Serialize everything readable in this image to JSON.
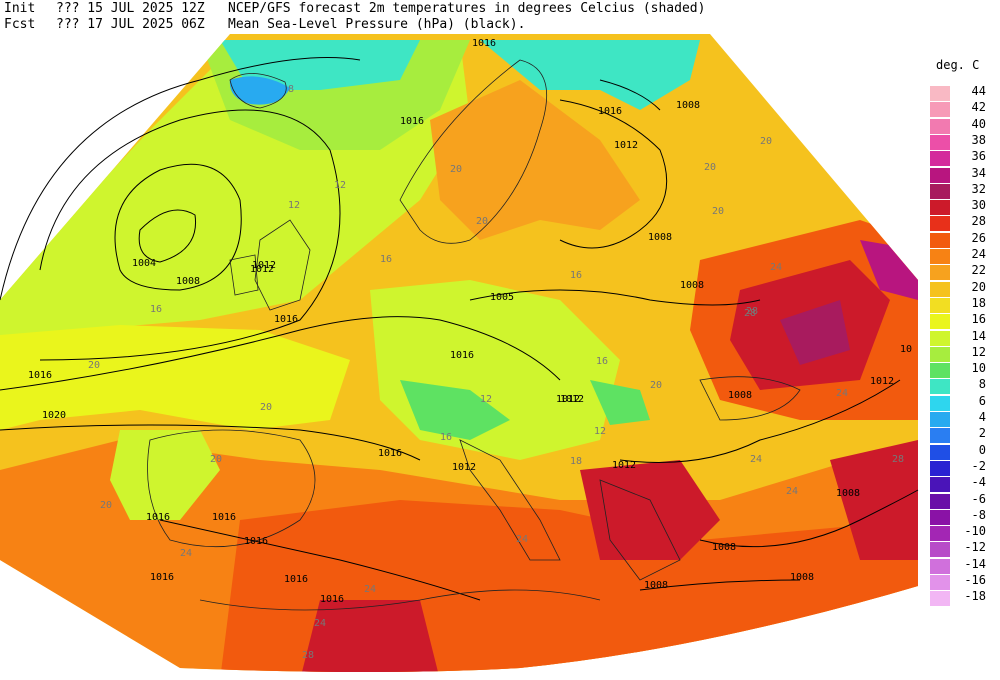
{
  "header": {
    "line1": {
      "label": "Init",
      "time": "??? 15 JUL 2025 12Z",
      "title": "NCEP/GFS forecast 2m temperatures in degrees Celcius (shaded)"
    },
    "line2": {
      "label": "Fcst",
      "time": "??? 17 JUL 2025 06Z",
      "title": "Mean Sea-Level Pressure (hPa) (black)."
    }
  },
  "legend": {
    "title": "deg. C",
    "items": [
      {
        "label": "44",
        "color": "#f9b9c4"
      },
      {
        "label": "42",
        "color": "#f79ab7"
      },
      {
        "label": "40",
        "color": "#f27ab0"
      },
      {
        "label": "38",
        "color": "#ec4fa8"
      },
      {
        "label": "36",
        "color": "#d42b9c"
      },
      {
        "label": "34",
        "color": "#b8157f"
      },
      {
        "label": "32",
        "color": "#a81b5e"
      },
      {
        "label": "30",
        "color": "#cc1a2a"
      },
      {
        "label": "28",
        "color": "#e8301a"
      },
      {
        "label": "26",
        "color": "#f25a0e"
      },
      {
        "label": "24",
        "color": "#f78214"
      },
      {
        "label": "22",
        "color": "#f7a21e"
      },
      {
        "label": "20",
        "color": "#f5c21e"
      },
      {
        "label": "18",
        "color": "#f2de22"
      },
      {
        "label": "16",
        "color": "#eaf51c"
      },
      {
        "label": "14",
        "color": "#cff52e"
      },
      {
        "label": "12",
        "color": "#a7ed3e"
      },
      {
        "label": "10",
        "color": "#5ee262"
      },
      {
        "label": "8",
        "color": "#3ee6c4"
      },
      {
        "label": "6",
        "color": "#2ed6ee"
      },
      {
        "label": "4",
        "color": "#28aaf0"
      },
      {
        "label": "2",
        "color": "#2a7ef2"
      },
      {
        "label": "0",
        "color": "#1f4fe6"
      },
      {
        "label": "-2",
        "color": "#2a22d2"
      },
      {
        "label": "-4",
        "color": "#4a14b8"
      },
      {
        "label": "-6",
        "color": "#6a0fa8"
      },
      {
        "label": "-8",
        "color": "#8a12a6"
      },
      {
        "label": "-10",
        "color": "#a326b4"
      },
      {
        "label": "-12",
        "color": "#b84cc8"
      },
      {
        "label": "-14",
        "color": "#d070dc"
      },
      {
        "label": "-16",
        "color": "#e292ea"
      },
      {
        "label": "-18",
        "color": "#f2b6f4"
      }
    ]
  },
  "map": {
    "isobar_labels": [
      "1016",
      "1016",
      "1008",
      "1016",
      "1012",
      "1012",
      "1008",
      "1004",
      "1008",
      "1012",
      "1016",
      "1005",
      "1008",
      "1016",
      "1012",
      "1016",
      "1020",
      "1016",
      "1012",
      "1012",
      "1012",
      "1008",
      "1016",
      "1016",
      "1016",
      "1016",
      "1008",
      "1008",
      "1012",
      "1008",
      "1016",
      "1008",
      "1016",
      "10"
    ],
    "temperature_labels": [
      "8",
      "12",
      "16",
      "16",
      "20",
      "20",
      "20",
      "20",
      "20",
      "20",
      "20",
      "20",
      "24",
      "24",
      "24",
      "24",
      "24",
      "24",
      "24",
      "24",
      "28",
      "28",
      "28",
      "16",
      "16",
      "12",
      "12",
      "12",
      "16",
      "18",
      "20",
      "20",
      "28"
    ]
  }
}
